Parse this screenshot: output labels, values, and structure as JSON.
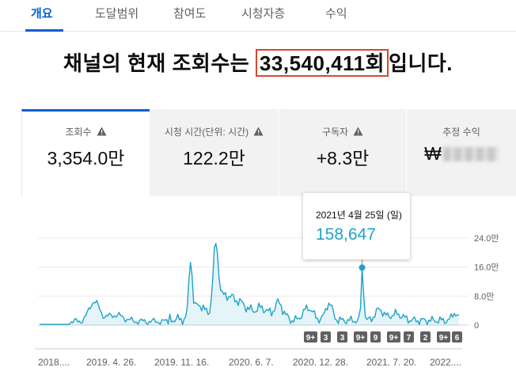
{
  "tabs": [
    {
      "label": "개요",
      "active": true
    },
    {
      "label": "도달범위",
      "active": false
    },
    {
      "label": "참여도",
      "active": false
    },
    {
      "label": "시청자층",
      "active": false
    },
    {
      "label": "수익",
      "active": false
    }
  ],
  "headline": {
    "prefix": "채널의 현재 조회수는 ",
    "highlight": "33,540,411회",
    "suffix": "입니다."
  },
  "metrics": [
    {
      "label": "조회수",
      "value": "3,354.0만",
      "icon": "warning-icon"
    },
    {
      "label": "시청 시간(단위: 시간)",
      "value": "122.2만",
      "icon": "warning-icon"
    },
    {
      "label": "구독자",
      "value": "+8.3만",
      "icon": "warning-icon"
    },
    {
      "label": "추정 수익",
      "value": "₩",
      "icon": "",
      "redacted": true
    }
  ],
  "tooltip": {
    "date": "2021년 4월 25일 (일)",
    "value": "158,647"
  },
  "chart_data": {
    "type": "area",
    "series_color": "#1fa2c8",
    "y_ticks": [
      "0",
      "8.0만",
      "16.0만",
      "24.0만"
    ],
    "y_tick_values": [
      0,
      80000,
      160000,
      240000
    ],
    "x_ticks": [
      "2018....",
      "2019. 4. 26.",
      "2019. 11. 16.",
      "2020. 6. 7.",
      "2020. 12. 28.",
      "2021. 7. 20.",
      "2022...."
    ],
    "ylim": [
      0,
      240000
    ],
    "highlight_point": {
      "date": "2021-04-25",
      "value": 158647
    },
    "event_badges": [
      "9+",
      "3",
      "3",
      "9+",
      "9",
      "9+",
      "7",
      "2",
      "9+",
      "6"
    ]
  }
}
